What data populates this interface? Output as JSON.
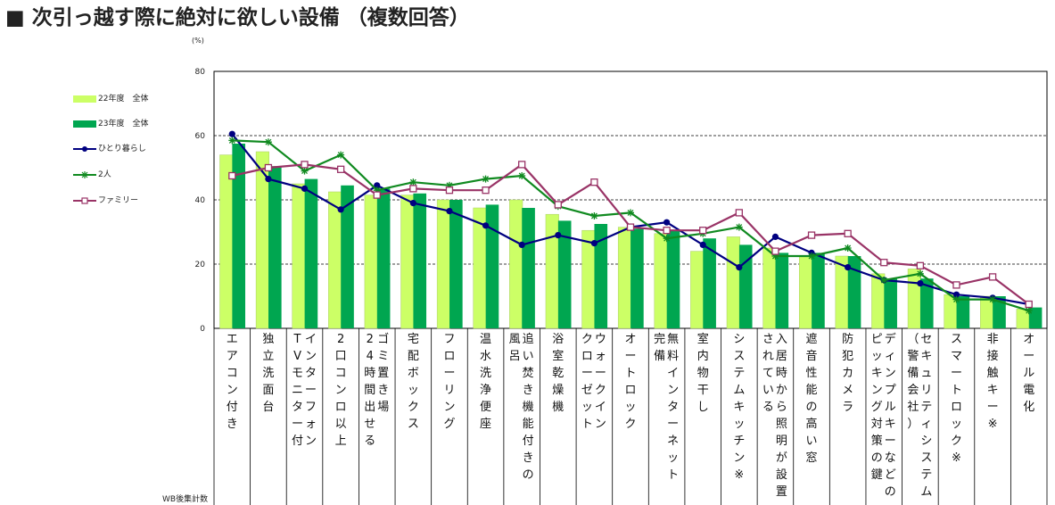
{
  "title": "■ 次引っ越す際に絶対に欲しい設備 （複数回答）",
  "chart_data": {
    "type": "bar",
    "unit_label": "(%)",
    "ylim": [
      0,
      80
    ],
    "yticks": [
      0,
      20,
      40,
      60,
      80
    ],
    "grid": true,
    "legend_position": "left",
    "categories": [
      "エアコン付き",
      "独立洗面台",
      "インターフォン（TVモニター付）",
      "2口コンロ以上",
      "ゴミ置き場（24時間出せる）",
      "宅配ボックス",
      "フローリング",
      "温水洗浄便座",
      "追い焚き機能付きの風呂",
      "浴室乾燥機",
      "ウォークインクローゼット",
      "オートロック",
      "無料インターネット完備",
      "室内物干し",
      "システムキッチン※",
      "入居時から照明が設置されている",
      "遮音性能の高い窓",
      "防犯カメラ",
      "ディンプルキーなどのピッキング対策の鍵",
      "セキュリティシステム（警備会社）",
      "スマートロック※",
      "非接触キー※",
      "オール電化"
    ],
    "category_lines": [
      [
        "エ",
        "ア",
        "コ",
        "ン",
        "付",
        "き"
      ],
      [
        "独",
        "立",
        "洗",
        "面",
        "台"
      ],
      [
        "イ",
        "ン",
        "タ",
        "ー",
        "フ",
        "ォ",
        "ン"
      ],
      [
        "2",
        "口",
        "コ",
        "ン",
        "ロ",
        "以",
        "上"
      ],
      [
        "ゴ",
        "ミ",
        "置",
        "き",
        "場"
      ],
      [
        "宅",
        "配",
        "ボ",
        "ッ",
        "ク",
        "ス"
      ],
      [
        "フ",
        "ロ",
        "ー",
        "リ",
        "ン",
        "グ"
      ],
      [
        "温",
        "水",
        "洗",
        "浄",
        "便",
        "座"
      ],
      [
        "追",
        "い",
        "焚",
        "き",
        "機",
        "能",
        "付",
        "き",
        "の"
      ],
      [
        "浴",
        "室",
        "乾",
        "燥",
        "機"
      ],
      [
        "ウ",
        "ォ",
        "ー",
        "ク",
        "イ",
        "ン"
      ],
      [
        "オ",
        "ー",
        "ト",
        "ロ",
        "ッ",
        "ク"
      ],
      [
        "無",
        "料",
        "イ",
        "ン",
        "タ",
        "ー",
        "ネ",
        "ッ",
        "ト"
      ],
      [
        "室",
        "内",
        "物",
        "干",
        "し"
      ],
      [
        "シ",
        "ス",
        "テ",
        "ム",
        "キ",
        "ッ",
        "チ",
        "ン",
        "※"
      ],
      [
        "入",
        "居",
        "時",
        "か",
        "ら",
        "照",
        "明",
        "が",
        "設",
        "置"
      ],
      [
        "遮",
        "音",
        "性",
        "能",
        "の",
        "高",
        "い",
        "窓"
      ],
      [
        "防",
        "犯",
        "カ",
        "メ",
        "ラ"
      ],
      [
        "デ",
        "ィ",
        "ン",
        "プ",
        "ル",
        "キ",
        "ー",
        "な",
        "ど",
        "の"
      ],
      [
        "セ",
        "キ",
        "ュ",
        "リ",
        "テ",
        "ィ",
        "シ",
        "ス",
        "テ",
        "ム"
      ],
      [
        "ス",
        "マ",
        "ー",
        "ト",
        "ロ",
        "ッ",
        "ク",
        "※"
      ],
      [
        "非",
        "接",
        "触",
        "キ",
        "ー",
        "※"
      ],
      [
        "オ",
        "ー",
        "ル",
        "電",
        "化"
      ]
    ],
    "category_lines2": [
      [],
      [],
      [
        "T",
        "V",
        "モ",
        "ニ",
        "タ",
        "ー",
        "付"
      ],
      [],
      [
        "2",
        "4",
        "時",
        "間",
        "出",
        "せ",
        "る"
      ],
      [],
      [],
      [],
      [
        "風",
        "呂"
      ],
      [],
      [
        "ク",
        "ロ",
        "ー",
        "ゼ",
        "ッ",
        "ト"
      ],
      [],
      [
        "完",
        "備"
      ],
      [],
      [],
      [
        "さ",
        "れ",
        "て",
        "い",
        "る"
      ],
      [],
      [],
      [
        "ピ",
        "ッ",
        "キ",
        "ン",
        "グ",
        "対",
        "策",
        "の",
        "鍵"
      ],
      [
        "（",
        "警",
        "備",
        "会",
        "社",
        "）"
      ],
      [],
      [],
      []
    ],
    "series": [
      {
        "name": "22年度　全体",
        "kind": "bar",
        "color": "#ccff66",
        "values": [
          54,
          55,
          45,
          42.5,
          41.5,
          41.5,
          40,
          37.5,
          40,
          35.5,
          30.5,
          31.5,
          29.5,
          24,
          28.5,
          25,
          22.5,
          22.5,
          17,
          18.5,
          10.5,
          10,
          6
        ]
      },
      {
        "name": "23年度　全体",
        "kind": "bar",
        "color": "#00a650",
        "values": [
          57.5,
          50.5,
          46.5,
          44.5,
          43.5,
          42,
          40,
          38.5,
          37.5,
          33.5,
          32.5,
          31,
          30.5,
          28,
          26,
          23.5,
          23.5,
          22.5,
          15.5,
          15.5,
          10,
          10,
          6.5
        ]
      },
      {
        "name": "ひとり暮らし",
        "kind": "line",
        "color": "#000080",
        "marker": "dot",
        "values": [
          60.5,
          46.5,
          43.5,
          37,
          44.5,
          39,
          36.5,
          32,
          26,
          29,
          26.5,
          31.5,
          33,
          26,
          19,
          28.5,
          23.5,
          19,
          15,
          14,
          10.5,
          9.5,
          7.5
        ]
      },
      {
        "name": "2人",
        "kind": "line",
        "color": "#108a20",
        "marker": "star",
        "values": [
          58.5,
          58,
          49,
          54,
          43,
          45.5,
          44.5,
          46.5,
          47.5,
          38,
          35,
          36,
          28,
          29.5,
          31.5,
          22.5,
          22.5,
          25,
          15,
          17,
          9,
          9,
          5.5
        ]
      },
      {
        "name": "ファミリー",
        "kind": "line",
        "color": "#993366",
        "marker": "square",
        "values": [
          47.5,
          50,
          51,
          49.5,
          41.5,
          43.5,
          43,
          43,
          51,
          38.5,
          45.5,
          31.5,
          30.5,
          30.5,
          36,
          24,
          29,
          29.5,
          20.5,
          19.5,
          13.5,
          16,
          7.5
        ]
      }
    ],
    "footnote": "WB後集計数"
  }
}
